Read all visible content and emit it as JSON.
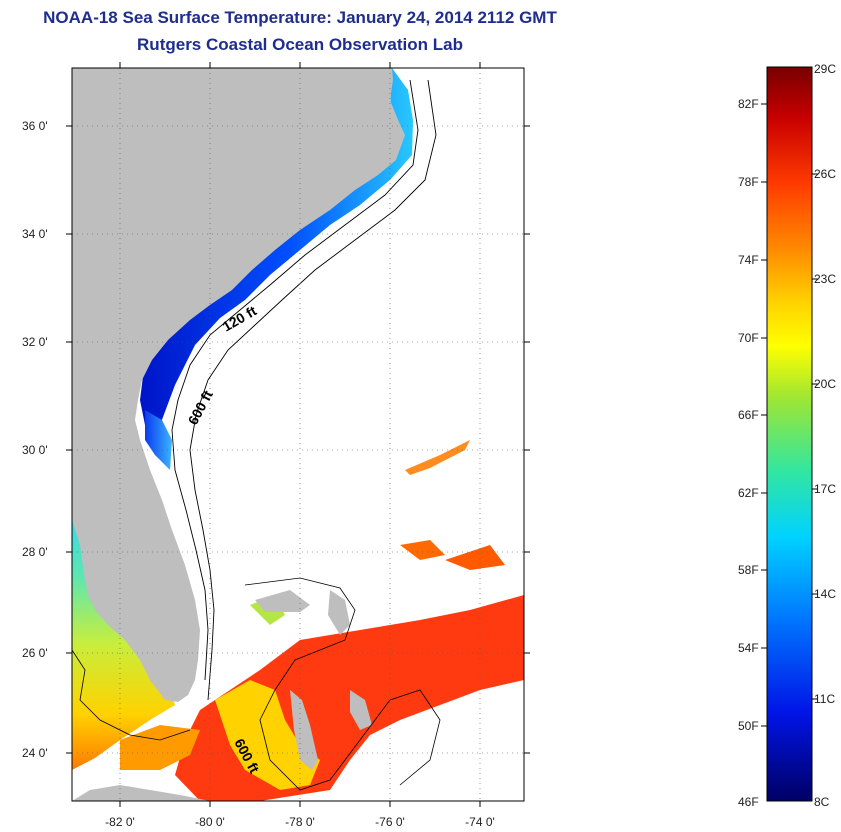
{
  "header": {
    "title": "NOAA-18 Sea Surface Temperature:  January 24, 2014 2112 GMT",
    "subtitle": "Rutgers Coastal Ocean Observation Lab"
  },
  "map": {
    "lat_labels": [
      "36 0'",
      "34 0'",
      "32 0'",
      "30 0'",
      "28 0'",
      "26 0'",
      "24 0'"
    ],
    "lon_labels": [
      "-82 0'",
      "-80 0'",
      "-78 0'",
      "-76 0'",
      "-74 0'"
    ],
    "isobaths": [
      "120 ft",
      "600 ft",
      "600 ft"
    ],
    "land_color": "#bebebe",
    "no_data_color": "#ffffff"
  },
  "colorbar": {
    "fahrenheit_labels": [
      "82F",
      "78F",
      "74F",
      "70F",
      "66F",
      "62F",
      "58F",
      "54F",
      "50F",
      "46F"
    ],
    "celsius_labels": [
      "29C",
      "26C",
      "23C",
      "20C",
      "17C",
      "14C",
      "11C",
      "8C"
    ],
    "colors": [
      "#780000",
      "#c80000",
      "#ff3c00",
      "#ff8c00",
      "#ffd200",
      "#ffff00",
      "#a0e632",
      "#32e6a0",
      "#00d2ff",
      "#0078ff",
      "#0014e6",
      "#000064"
    ]
  }
}
